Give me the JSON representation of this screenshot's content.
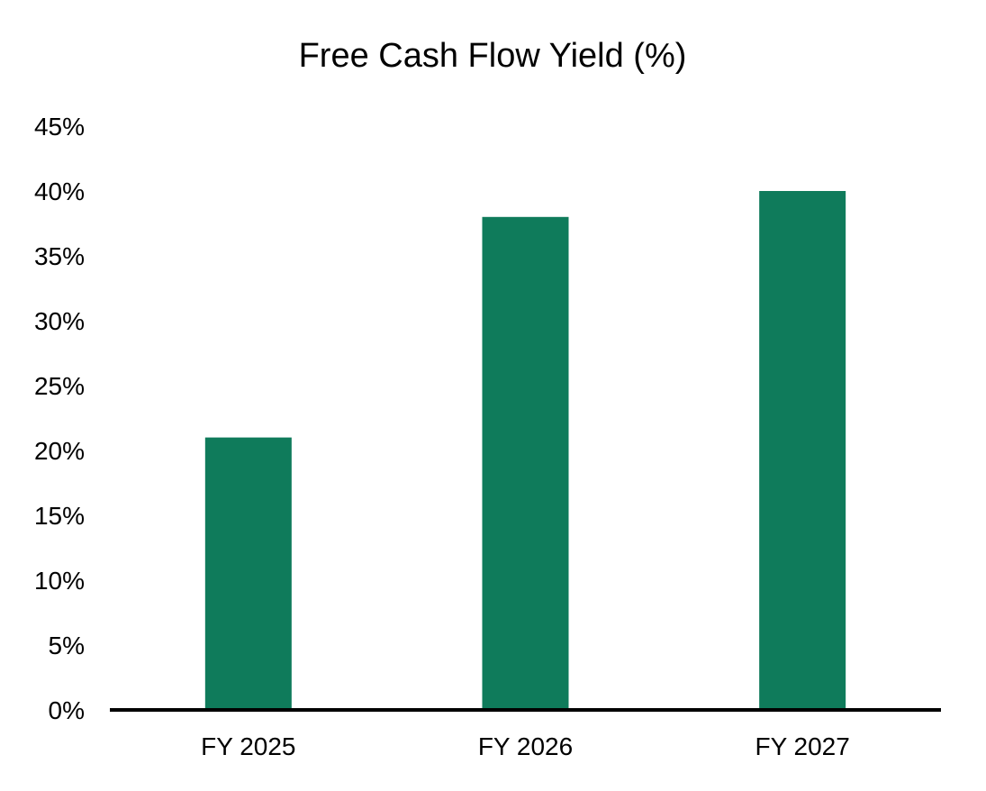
{
  "chart_data": {
    "type": "bar",
    "title": "Free Cash Flow Yield (%)",
    "xlabel": "",
    "ylabel": "",
    "categories": [
      "FY 2025",
      "FY 2026",
      "FY 2027"
    ],
    "values": [
      21,
      38,
      40
    ],
    "ylim": [
      0,
      45
    ],
    "ytick_values": [
      0,
      5,
      10,
      15,
      20,
      25,
      30,
      35,
      40,
      45
    ],
    "ytick_labels": [
      "0%",
      "5%",
      "10%",
      "15%",
      "20%",
      "25%",
      "30%",
      "35%",
      "40%",
      "45%"
    ],
    "grid": false,
    "legend": "none",
    "colors": {
      "bar": "#0f7b5b",
      "axis": "#000000",
      "text": "#000000"
    }
  }
}
